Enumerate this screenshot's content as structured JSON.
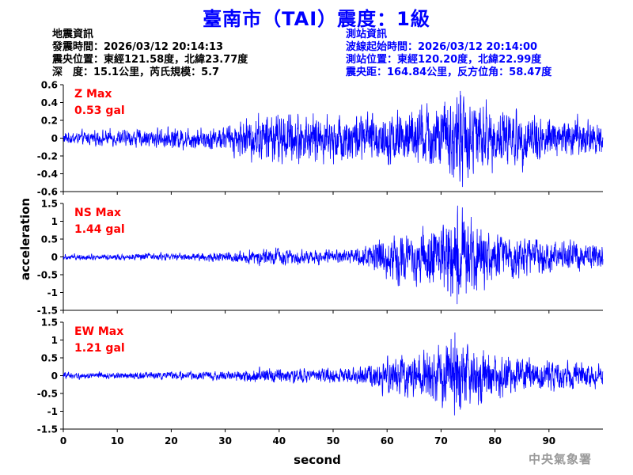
{
  "header": {
    "title": "臺南市（TAI）震度：1級"
  },
  "quake_info": {
    "heading": "地震資訊",
    "lines": [
      "發震時間：2026/03/12 20:14:13",
      "震央位置：東經121.58度，北緯23.77度",
      "深　度：15.1公里，芮氏規模：5.7"
    ]
  },
  "station_info": {
    "heading": "測站資訊",
    "lines": [
      "波線起始時間：2026/03/12 20:14:00",
      "測站位置：東經120.20度，北緯22.99度",
      "震央距：164.84公里，反方位角：58.47度"
    ]
  },
  "watermark": "中央氣象署",
  "colors": {
    "trace": "#0000ff",
    "label": "#ff0000",
    "title": "#0000ff"
  },
  "chart_data": {
    "type": "line",
    "xlabel": "second",
    "ylabel": "acceleration",
    "xlim": [
      0,
      100
    ],
    "x_ticks": [
      0,
      10,
      20,
      30,
      40,
      50,
      60,
      70,
      80,
      90
    ],
    "x_tick_labels": [
      "0",
      "10",
      "20",
      "30",
      "40",
      "50",
      "60",
      "70",
      "80",
      "90"
    ],
    "grid": false,
    "series": [
      {
        "name": "Z Max",
        "max_label": "0.53 gal",
        "ylim": [
          -0.6,
          0.6
        ],
        "y_ticks": [
          -0.6,
          -0.4,
          -0.2,
          0,
          0.2,
          0.4,
          0.6
        ],
        "y_tick_labels": [
          "-0.6",
          "-0.4",
          "-0.2",
          "0",
          "0.2",
          "0.4",
          "0.6"
        ],
        "peak_abs": 0.53,
        "peak_time": 73.5,
        "envelope": {
          "t": [
            0,
            10,
            20,
            30,
            35,
            40,
            50,
            60,
            70,
            73,
            80,
            90,
            100
          ],
          "amp": [
            0.06,
            0.08,
            0.1,
            0.12,
            0.22,
            0.25,
            0.22,
            0.26,
            0.32,
            0.45,
            0.3,
            0.22,
            0.18
          ]
        }
      },
      {
        "name": "NS Max",
        "max_label": "1.44 gal",
        "ylim": [
          -1.5,
          1.5
        ],
        "y_ticks": [
          -1.5,
          -1,
          -0.5,
          0,
          0.5,
          1,
          1.5
        ],
        "y_tick_labels": [
          "-1.5",
          "-1",
          "-0.5",
          "0",
          "0.5",
          "1",
          "1.5"
        ],
        "peak_abs": 1.44,
        "peak_time": 73.0,
        "envelope": {
          "t": [
            0,
            10,
            20,
            30,
            35,
            40,
            50,
            55,
            60,
            65,
            70,
            73,
            78,
            85,
            100
          ],
          "amp": [
            0.07,
            0.08,
            0.09,
            0.11,
            0.18,
            0.2,
            0.16,
            0.2,
            0.55,
            0.65,
            0.85,
            1.2,
            0.75,
            0.45,
            0.35
          ]
        }
      },
      {
        "name": "EW Max",
        "max_label": "1.21 gal",
        "ylim": [
          -1.5,
          1.5
        ],
        "y_ticks": [
          -1.5,
          -1,
          -0.5,
          0,
          0.5,
          1,
          1.5
        ],
        "y_tick_labels": [
          "-1.5",
          "-1",
          "-0.5",
          "0",
          "0.5",
          "1",
          "1.5"
        ],
        "peak_abs": 1.21,
        "peak_time": 72.5,
        "envelope": {
          "t": [
            0,
            10,
            20,
            30,
            35,
            40,
            50,
            55,
            60,
            65,
            70,
            73,
            78,
            85,
            100
          ],
          "amp": [
            0.08,
            0.08,
            0.09,
            0.11,
            0.18,
            0.2,
            0.17,
            0.2,
            0.4,
            0.55,
            0.7,
            0.95,
            0.65,
            0.4,
            0.3
          ]
        }
      }
    ]
  }
}
